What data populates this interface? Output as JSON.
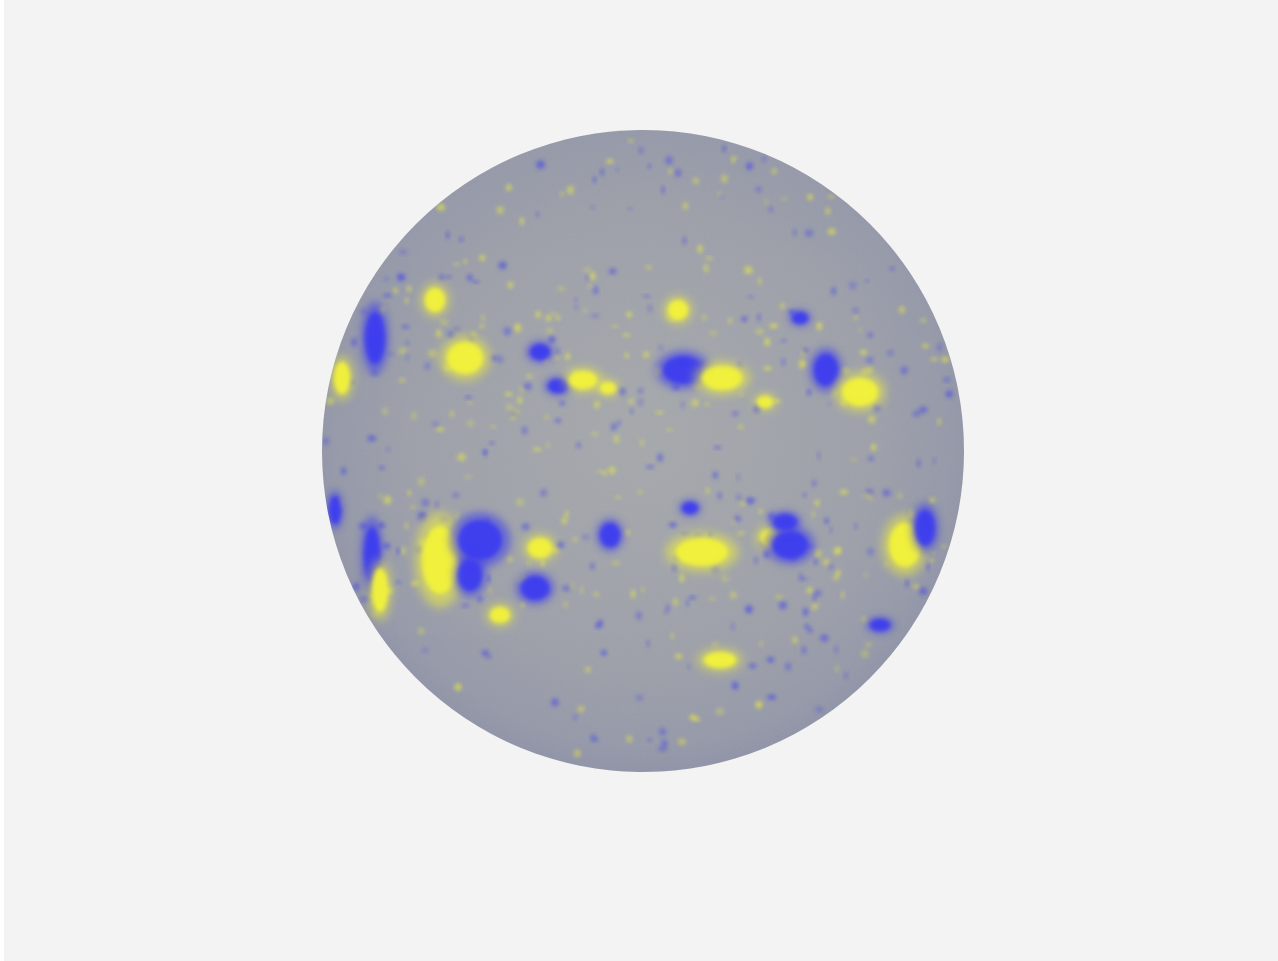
{
  "image": {
    "subject": "full-disk-solar-magnetogram",
    "colors": {
      "background": "#f3f3f3",
      "disk_base": "#9a9ea6",
      "positive_polarity": "#f2f23a",
      "negative_polarity": "#3c3ef0"
    }
  }
}
